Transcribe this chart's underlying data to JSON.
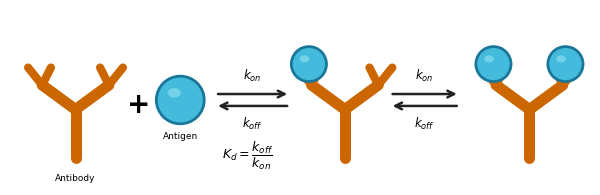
{
  "bg_color": "#ffffff",
  "antibody_color": "#cc6600",
  "antigen_color_main": "#2299cc",
  "antigen_color_light": "#44bbdd",
  "antigen_color_highlight": "#88ddee",
  "antigen_stroke": "#1a7799",
  "text_color": "#000000",
  "antibody_label": "Antibody",
  "antigen_label": "Antigen",
  "arrow_color": "#222222",
  "figsize": [
    6.0,
    1.95
  ],
  "dpi": 100
}
